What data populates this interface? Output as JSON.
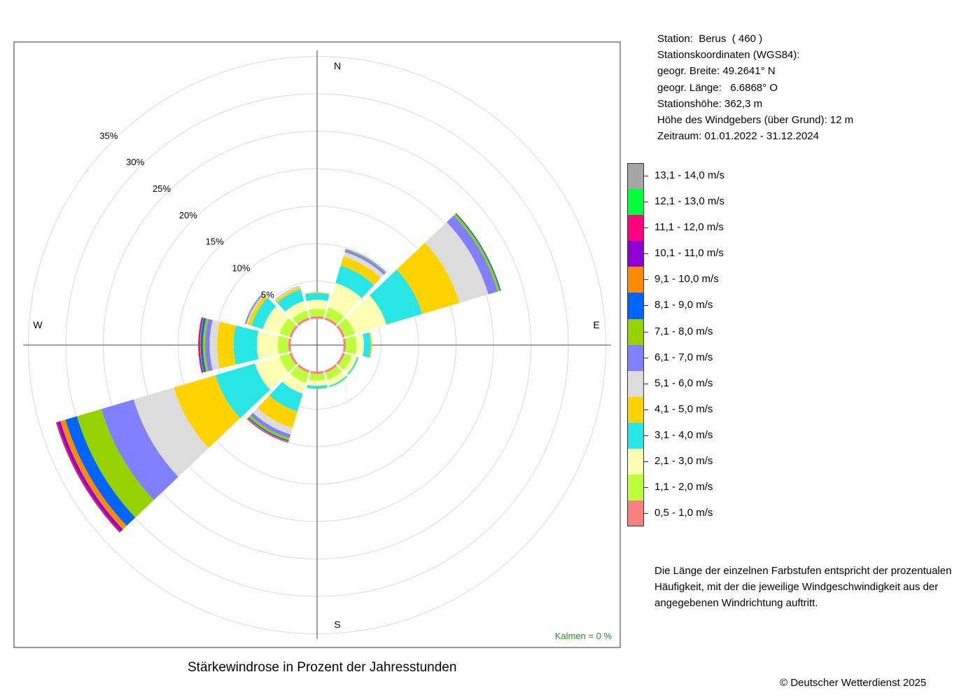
{
  "station": {
    "lines": [
      "Station:  Berus  ( 460 )",
      "Stationskoordinaten (WGS84):",
      "geogr. Breite: 49.2641° N",
      "geogr. Länge:   6.6868° O",
      "Stationshöhe: 362,3 m",
      "Höhe des Windgebers (über Grund): 12 m",
      "Zeitraum: 01.01.2022 - 31.12.2024"
    ]
  },
  "legend": {
    "items": [
      {
        "label": "13,1 - 14,0 m/s",
        "color": "#a6a6a6"
      },
      {
        "label": "12,1 - 13,0 m/s",
        "color": "#00ff3c"
      },
      {
        "label": "11,1 - 12,0 m/s",
        "color": "#ff0080"
      },
      {
        "label": "10,1 - 11,0 m/s",
        "color": "#8c00d4"
      },
      {
        "label": "9,1 - 10,0 m/s",
        "color": "#ff8c00"
      },
      {
        "label": "8,1 - 9,0 m/s",
        "color": "#0064ff"
      },
      {
        "label": "7,1 - 8,0 m/s",
        "color": "#96d200"
      },
      {
        "label": "6,1 - 7,0 m/s",
        "color": "#8080ff"
      },
      {
        "label": "5,1 - 6,0 m/s",
        "color": "#dcdcdc"
      },
      {
        "label": "4,1 - 5,0 m/s",
        "color": "#ffd200"
      },
      {
        "label": "3,1 - 4,0 m/s",
        "color": "#28e6e6"
      },
      {
        "label": "2,1 - 3,0 m/s",
        "color": "#ffffb4"
      },
      {
        "label": "1,1 - 2,0 m/s",
        "color": "#beff3c"
      },
      {
        "label": "0,5 - 1,0 m/s",
        "color": "#ff8080"
      }
    ]
  },
  "note": "Die Länge der einzelnen Farbstufen entspricht der prozentualen Häufigkeit, mit der die jeweilige Windgeschwindigkeit aus der angegebenen Windrichtung auftritt.",
  "caption": "Stärkewindrose in Prozent der Jahresstunden",
  "copyright": "© Deutscher Wetterdienst  2025",
  "calm": "Kalmen  =  0 %",
  "calm_color": "#2a8a2a",
  "chart_data": {
    "type": "wind-rose",
    "unit": "%",
    "directions": [
      "N",
      "E",
      "S",
      "W"
    ],
    "ring_labels": [
      "5%",
      "10%",
      "15%",
      "20%",
      "25%",
      "30%",
      "35%"
    ],
    "ring_values": [
      5,
      10,
      15,
      20,
      25,
      30,
      35
    ],
    "speed_classes": [
      "0,5 - 1,0 m/s",
      "1,1 - 2,0 m/s",
      "2,1 - 3,0 m/s",
      "3,1 - 4,0 m/s",
      "4,1 - 5,0 m/s",
      "5,1 - 6,0 m/s",
      "6,1 - 7,0 m/s",
      "7,1 - 8,0 m/s",
      "8,1 - 9,0 m/s",
      "9,1 - 10,0 m/s",
      "10,1 - 11,0 m/s",
      "11,1 - 12,0 m/s",
      "12,1 - 13,0 m/s",
      "13,1 - 14,0 m/s"
    ],
    "sectors": [
      {
        "dir_deg": 0,
        "freqs": [
          0.3,
          1.0,
          1.2,
          0.9,
          0.1,
          0.05,
          0,
          0,
          0,
          0,
          0,
          0,
          0,
          0
        ]
      },
      {
        "dir_deg": 30,
        "freqs": [
          0.3,
          1.4,
          3.4,
          2.4,
          1.3,
          0.6,
          0.3,
          0.1,
          0.05,
          0,
          0,
          0,
          0,
          0
        ]
      },
      {
        "dir_deg": 60,
        "freqs": [
          0.3,
          1.4,
          4.4,
          5.0,
          5.2,
          4.0,
          1.3,
          0.3,
          0.15,
          0,
          0,
          0,
          0,
          0
        ]
      },
      {
        "dir_deg": 90,
        "freqs": [
          0.3,
          1.4,
          1.0,
          0.9,
          0.15,
          0.05,
          0,
          0,
          0,
          0,
          0,
          0,
          0,
          0
        ]
      },
      {
        "dir_deg": 120,
        "freqs": [
          0.3,
          1.0,
          0.7,
          0.2,
          0.05,
          0,
          0,
          0,
          0,
          0,
          0,
          0,
          0,
          0
        ]
      },
      {
        "dir_deg": 150,
        "freqs": [
          0.3,
          1.0,
          0.8,
          0.2,
          0.05,
          0,
          0,
          0,
          0,
          0,
          0,
          0,
          0,
          0
        ]
      },
      {
        "dir_deg": 180,
        "freqs": [
          0.3,
          0.9,
          0.7,
          0.4,
          0.05,
          0,
          0,
          0,
          0,
          0,
          0,
          0,
          0,
          0
        ]
      },
      {
        "dir_deg": 210,
        "freqs": [
          0.3,
          1.4,
          1.5,
          2.5,
          2.3,
          0.9,
          0.5,
          0.3,
          0.15,
          0.1,
          0.05,
          0.05,
          0,
          0
        ]
      },
      {
        "dir_deg": 240,
        "freqs": [
          0.3,
          1.4,
          3.4,
          5.5,
          5.8,
          5.6,
          4.5,
          3.4,
          1.6,
          0.7,
          0.4,
          0.2,
          0.05,
          0
        ]
      },
      {
        "dir_deg": 270,
        "freqs": [
          0.3,
          1.4,
          2.8,
          3.1,
          2.2,
          1.0,
          0.6,
          0.3,
          0.3,
          0.1,
          0.1,
          0.1,
          0.05,
          0
        ]
      },
      {
        "dir_deg": 300,
        "freqs": [
          0.3,
          1.4,
          2.3,
          1.6,
          0.5,
          0.2,
          0.1,
          0.05,
          0.05,
          0,
          0,
          0,
          0,
          0
        ]
      },
      {
        "dir_deg": 330,
        "freqs": [
          0.3,
          1.0,
          1.3,
          1.6,
          0.3,
          0.15,
          0.05,
          0,
          0,
          0,
          0,
          0,
          0,
          0
        ]
      }
    ],
    "calm_percent": 0,
    "title": "Stärkewindrose in Prozent der Jahresstunden",
    "grid": true
  }
}
